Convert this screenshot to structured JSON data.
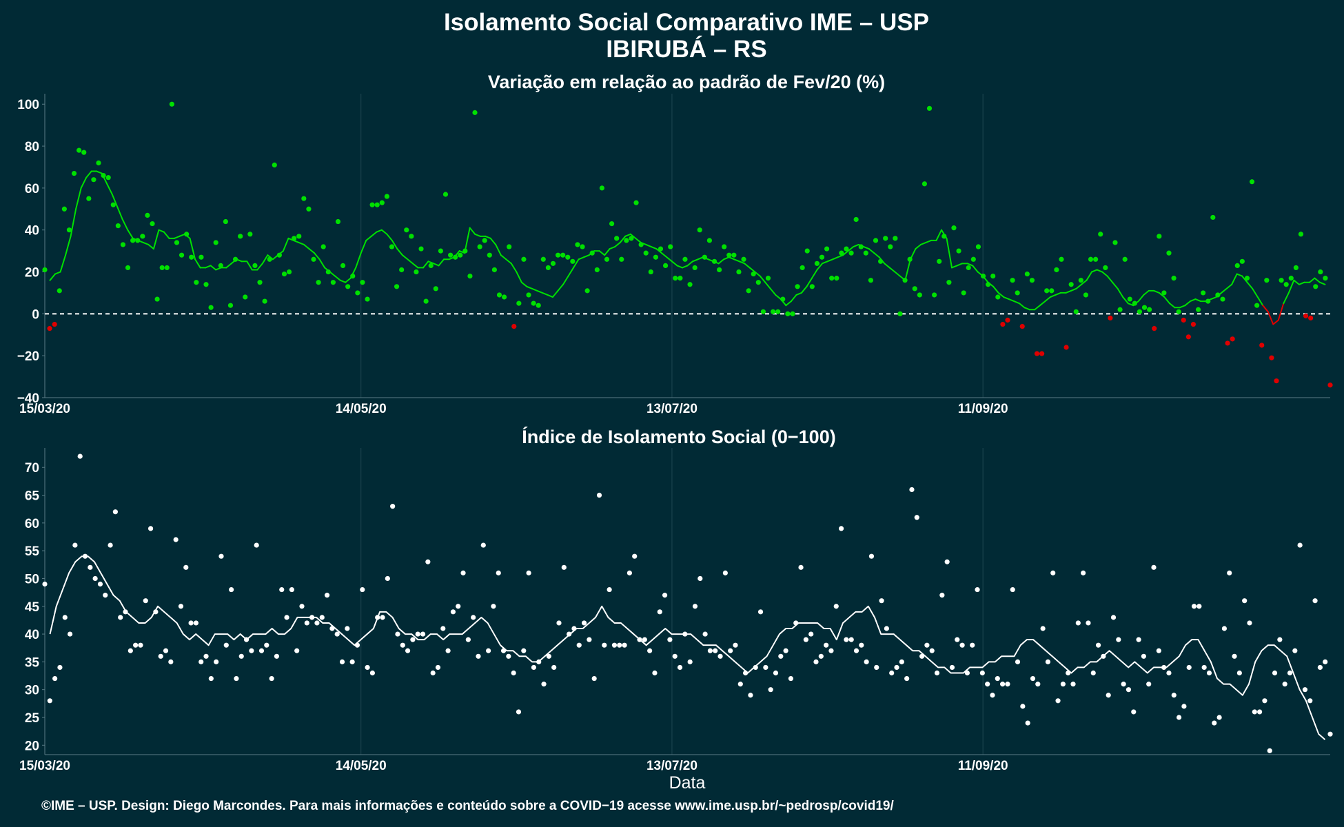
{
  "title_line1": "Isolamento Social Comparativo IME – USP",
  "title_line2": "IBIRUBÁ – RS",
  "caption": "©IME – USP. Design: Diego Marcondes. Para mais informações e conteúdo sobre a COVID−19 acesse www.ime.usp.br/~pedrosp/covid19/",
  "xlabel": "Data",
  "colors": {
    "background": "#012a35",
    "positive": "#00e000",
    "negative": "#e00000",
    "index": "#ffffff",
    "grid": "#1f4652",
    "zero_line": "#ffffff"
  },
  "chart_data": [
    {
      "type": "scatter",
      "title": "Variação em relação ao padrão de Fev/20 (%)",
      "x_range": [
        "15/03/20",
        "18/11/20"
      ],
      "x_ticks": [
        "15/03/20",
        "14/05/20",
        "13/07/20",
        "11/09/20"
      ],
      "y_ticks": [
        "−40",
        "−20",
        "0",
        "20",
        "40",
        "60",
        "80",
        "100"
      ],
      "y_tick_values": [
        -40,
        -20,
        0,
        20,
        40,
        60,
        80,
        100
      ],
      "ylim": [
        -40,
        105
      ],
      "zero_line": "dashed",
      "series": [
        {
          "points": [
            21,
            -7,
            -5,
            11,
            50,
            40,
            67,
            78,
            77,
            55,
            64,
            72,
            66,
            65,
            52,
            42,
            33,
            22,
            35,
            35,
            37,
            47,
            43,
            7,
            22,
            22,
            100,
            34,
            28,
            38,
            27,
            15,
            27,
            14,
            3,
            34,
            23,
            44,
            4,
            26,
            37,
            8,
            38,
            23,
            15,
            6,
            26,
            71,
            28,
            19,
            20,
            36,
            37,
            55,
            50,
            26,
            15,
            32,
            20,
            15,
            44,
            23,
            13,
            18,
            10,
            15,
            7,
            52,
            52,
            53,
            56,
            32,
            13,
            21,
            40,
            37,
            20,
            31,
            6,
            23,
            12,
            30,
            57,
            28,
            27,
            28,
            30,
            18,
            96,
            32,
            35,
            28,
            21,
            9,
            8,
            32,
            -6,
            5,
            26,
            9,
            5,
            4,
            26,
            22,
            24,
            28,
            28,
            27,
            25,
            33,
            32,
            11,
            29,
            21,
            60,
            26,
            43,
            36,
            26,
            35,
            36,
            53,
            33,
            29,
            20,
            27,
            31,
            23,
            32,
            17,
            17,
            26,
            14,
            22,
            40,
            27,
            35,
            25,
            21,
            32,
            28,
            28,
            20,
            26,
            11,
            19,
            15,
            1,
            17,
            1,
            1,
            7,
            0,
            0,
            13,
            22,
            30,
            13,
            24,
            27,
            31,
            17,
            17,
            29,
            31,
            29,
            45,
            32,
            29,
            16,
            35,
            25,
            36,
            32,
            36,
            0,
            16,
            26,
            12,
            9,
            62,
            98,
            9,
            25,
            37,
            15,
            41,
            30,
            10,
            22,
            26,
            32,
            18,
            14,
            18,
            8,
            -5,
            -3,
            16,
            10,
            -6,
            19,
            16,
            -19,
            -19,
            11,
            11,
            21,
            26,
            -16,
            14,
            1,
            16,
            9,
            26,
            26,
            38,
            22,
            -2,
            34,
            2,
            26,
            7,
            5,
            1,
            3,
            2,
            -7,
            37,
            10,
            29,
            17,
            1,
            -3,
            -11,
            -5,
            2,
            10,
            6,
            46,
            9,
            7,
            -14,
            -12,
            23,
            25,
            17,
            63,
            4,
            -15,
            16,
            -21,
            -32,
            16,
            14,
            17,
            22,
            38,
            -1,
            -2,
            13,
            20,
            17,
            -34
          ]
        },
        {
          "name": "smoothed",
          "points": [
            16,
            19,
            20,
            28,
            37,
            50,
            60,
            65,
            68,
            68,
            67,
            62,
            57,
            51,
            45,
            40,
            36,
            35,
            34,
            33,
            31,
            40,
            39,
            36,
            36,
            37,
            38,
            36,
            26,
            22,
            22,
            23,
            21,
            22,
            22,
            24,
            26,
            25,
            25,
            21,
            21,
            24,
            28,
            26,
            28,
            30,
            36,
            35,
            34,
            33,
            31,
            29,
            26,
            22,
            20,
            18,
            16,
            15,
            17,
            22,
            29,
            35,
            37,
            39,
            40,
            38,
            35,
            31,
            28,
            26,
            24,
            22,
            22,
            25,
            24,
            23,
            26,
            26,
            27,
            30,
            29,
            41,
            38,
            37,
            37,
            36,
            33,
            28,
            26,
            24,
            20,
            15,
            13,
            12,
            11,
            10,
            9,
            8,
            11,
            14,
            18,
            22,
            26,
            27,
            28,
            30,
            30,
            28,
            31,
            32,
            34,
            37,
            38,
            36,
            34,
            33,
            32,
            31,
            29,
            27,
            25,
            23,
            22,
            23,
            25,
            26,
            27,
            26,
            25,
            24,
            26,
            27,
            26,
            25,
            24,
            22,
            20,
            18,
            15,
            12,
            9,
            7,
            4,
            6,
            9,
            10,
            13,
            17,
            21,
            24,
            25,
            26,
            27,
            28,
            30,
            32,
            33,
            32,
            31,
            29,
            27,
            24,
            22,
            20,
            18,
            16,
            26,
            31,
            33,
            34,
            35,
            35,
            40,
            36,
            22,
            23,
            24,
            24,
            23,
            20,
            18,
            15,
            13,
            10,
            8,
            7,
            6,
            5,
            3,
            2,
            2,
            4,
            6,
            8,
            9,
            10,
            10,
            11,
            12,
            14,
            16,
            20,
            21,
            20,
            18,
            15,
            12,
            8,
            5,
            4,
            6,
            9,
            11,
            11,
            10,
            8,
            5,
            3,
            3,
            4,
            6,
            7,
            6,
            6,
            7,
            8,
            10,
            12,
            14,
            19,
            18,
            15,
            12,
            8,
            4,
            1,
            -5,
            -3,
            5,
            10,
            16,
            14,
            15,
            15,
            17,
            15,
            14
          ]
        }
      ]
    },
    {
      "type": "scatter",
      "title": "Índice de Isolamento Social (0−100)",
      "x_range": [
        "15/03/20",
        "18/11/20"
      ],
      "x_ticks": [
        "15/03/20",
        "14/05/20",
        "13/07/20",
        "11/09/20"
      ],
      "y_ticks": [
        "20",
        "25",
        "30",
        "35",
        "40",
        "45",
        "50",
        "55",
        "60",
        "65",
        "70"
      ],
      "y_tick_values": [
        20,
        25,
        30,
        35,
        40,
        45,
        50,
        55,
        60,
        65,
        70
      ],
      "ylim": [
        18.3,
        73.5
      ],
      "series": [
        {
          "points": [
            49,
            28,
            32,
            34,
            43,
            40,
            56,
            72,
            54,
            52,
            50,
            49,
            47,
            56,
            62,
            43,
            44,
            37,
            38,
            38,
            46,
            59,
            44,
            36,
            37,
            35,
            57,
            45,
            52,
            42,
            42,
            35,
            36,
            32,
            35,
            54,
            38,
            48,
            32,
            36,
            39,
            37,
            56,
            37,
            38,
            32,
            36,
            48,
            43,
            48,
            37,
            45,
            42,
            43,
            42,
            43,
            47,
            41,
            40,
            35,
            41,
            35,
            38,
            48,
            34,
            33,
            43,
            43,
            50,
            63,
            40,
            38,
            37,
            39,
            40,
            40,
            53,
            33,
            34,
            41,
            37,
            44,
            45,
            51,
            39,
            43,
            36,
            56,
            37,
            45,
            51,
            37,
            36,
            33,
            26,
            37,
            51,
            34,
            35,
            31,
            36,
            34,
            42,
            52,
            40,
            41,
            38,
            42,
            39,
            32,
            65,
            38,
            48,
            38,
            38,
            38,
            51,
            54,
            39,
            39,
            37,
            33,
            44,
            47,
            39,
            36,
            34,
            40,
            35,
            45,
            50,
            40,
            37,
            37,
            36,
            51,
            37,
            38,
            31,
            33,
            29,
            34,
            44,
            34,
            30,
            33,
            36,
            37,
            32,
            42,
            52,
            39,
            40,
            35,
            36,
            38,
            37,
            45,
            59,
            39,
            39,
            37,
            38,
            35,
            54,
            34,
            46,
            41,
            33,
            34,
            35,
            32,
            66,
            61,
            36,
            38,
            37,
            33,
            47,
            53,
            34,
            39,
            38,
            33,
            38,
            48,
            33,
            31,
            29,
            32,
            31,
            31,
            48,
            35,
            27,
            24,
            32,
            31,
            41,
            35,
            51,
            28,
            31,
            33,
            31,
            42,
            51,
            42,
            33,
            38,
            36,
            29,
            43,
            39,
            31,
            30,
            26,
            39,
            36,
            31,
            52,
            37,
            34,
            33,
            29,
            25,
            27,
            34,
            45,
            45,
            34,
            33,
            24,
            25,
            41,
            51,
            36,
            33,
            46,
            42,
            26,
            26,
            28,
            19,
            33,
            39,
            31,
            33,
            37,
            56,
            30,
            28,
            46,
            34,
            35,
            22
          ]
        },
        {
          "name": "smoothed",
          "points": [
            40,
            45,
            48,
            51,
            53,
            54,
            54,
            53,
            51,
            49,
            47,
            46,
            44,
            43,
            42,
            42,
            43,
            45,
            44,
            43,
            42,
            40,
            39,
            40,
            39,
            38,
            40,
            40,
            40,
            39,
            40,
            39,
            40,
            40,
            40,
            41,
            40,
            40,
            41,
            43,
            43,
            43,
            43,
            42,
            42,
            41,
            40,
            39,
            38,
            39,
            40,
            41,
            44,
            44,
            43,
            41,
            40,
            40,
            39,
            39,
            40,
            40,
            39,
            40,
            40,
            40,
            41,
            42,
            43,
            42,
            40,
            38,
            37,
            37,
            36,
            36,
            35,
            35,
            36,
            37,
            38,
            39,
            40,
            41,
            41,
            42,
            43,
            45,
            43,
            42,
            42,
            41,
            40,
            39,
            38,
            39,
            40,
            41,
            40,
            40,
            40,
            40,
            39,
            38,
            38,
            38,
            37,
            36,
            35,
            34,
            33,
            34,
            35,
            36,
            38,
            40,
            41,
            41,
            42,
            42,
            42,
            42,
            41,
            41,
            39,
            42,
            43,
            44,
            44,
            45,
            43,
            40,
            40,
            40,
            39,
            38,
            37,
            37,
            36,
            35,
            34,
            34,
            33,
            33,
            33,
            34,
            34,
            34,
            35,
            35,
            36,
            36,
            36,
            38,
            39,
            39,
            38,
            37,
            36,
            35,
            34,
            33,
            34,
            34,
            35,
            35,
            36,
            37,
            36,
            35,
            34,
            35,
            34,
            33,
            34,
            34,
            34,
            35,
            36,
            38,
            39,
            39,
            37,
            35,
            32,
            31,
            31,
            30,
            29,
            31,
            35,
            37,
            38,
            38,
            37,
            36,
            33,
            30,
            28,
            25,
            22,
            21
          ]
        }
      ]
    }
  ]
}
